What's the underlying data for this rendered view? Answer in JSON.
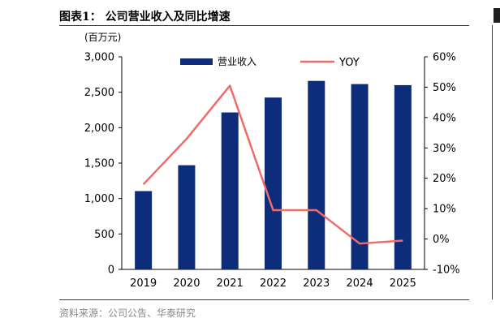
{
  "title": "图表1： 公司营业收入及同比增速",
  "source": "资料来源：公司公告、华泰研究",
  "chart_data": {
    "type": "bar",
    "unit_label": "(百万元)",
    "categories": [
      "2019",
      "2020",
      "2021",
      "2022",
      "2023",
      "2024",
      "2025"
    ],
    "series": [
      {
        "name": "营业收入",
        "type": "bar",
        "axis": "left",
        "color": "#0d2d7a",
        "values": [
          1105,
          1470,
          2215,
          2425,
          2660,
          2615,
          2600
        ]
      },
      {
        "name": "YOY",
        "type": "line",
        "axis": "right",
        "color": "#f26b6b",
        "values": [
          18,
          33,
          50.5,
          9.5,
          9.5,
          -1.5,
          -0.5
        ]
      }
    ],
    "y_left": {
      "min": 0,
      "max": 3000,
      "ticks": [
        "0",
        "500",
        "1,000",
        "1,500",
        "2,000",
        "2,500",
        "3,000"
      ]
    },
    "y_right": {
      "min": -10,
      "max": 60,
      "ticks": [
        "-10%",
        "0%",
        "10%",
        "20%",
        "30%",
        "40%",
        "50%",
        "60%"
      ]
    },
    "legend_position": "top-center",
    "grid": false
  }
}
